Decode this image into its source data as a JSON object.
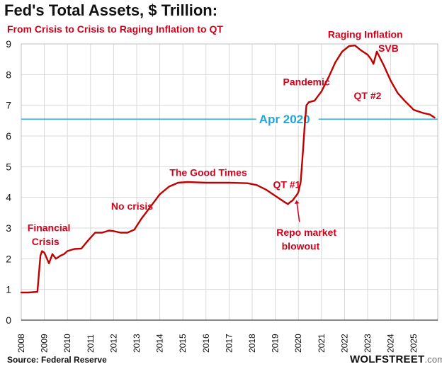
{
  "title": "Fed's Total Assets, $ Trillion:",
  "subtitle": "From Crisis to Crisis to Raging Inflation to QT",
  "source": "Source: Federal Reserve",
  "brand": "WOLFSTREET",
  "brand_suffix": ".com",
  "colors": {
    "series": "#c00000",
    "annotation": "#d0021b",
    "reference_line": "#20a7db",
    "grid": "#d9d9d9"
  },
  "chart_data": {
    "type": "line",
    "title": "Fed's Total Assets, $ Trillion:",
    "subtitle": "From Crisis to Crisis to Raging Inflation to QT",
    "xlabel": "",
    "ylabel": "",
    "xlim": [
      2008.0,
      2025.9
    ],
    "ylim": [
      0,
      9
    ],
    "grid": "horizontal",
    "x_ticks": [
      "2008",
      "2009",
      "2010",
      "2011",
      "2012",
      "2013",
      "2014",
      "2015",
      "2016",
      "2017",
      "2018",
      "2019",
      "2020",
      "2021",
      "2022",
      "2023",
      "2024",
      "2025"
    ],
    "y_ticks": [
      "0",
      "1",
      "2",
      "3",
      "4",
      "5",
      "6",
      "7",
      "8",
      "9"
    ],
    "series": [
      {
        "x": [
          2008.0,
          2008.3,
          2008.7,
          2008.83,
          2008.9,
          2009.0,
          2009.2,
          2009.35,
          2009.5,
          2009.7,
          2009.85,
          2010.0,
          2010.3,
          2010.6,
          2010.9,
          2011.2,
          2011.5,
          2011.8,
          2012.0,
          2012.3,
          2012.6,
          2012.9,
          2013.2,
          2013.6,
          2014.0,
          2014.4,
          2014.8,
          2015.2,
          2016.0,
          2017.0,
          2017.8,
          2018.2,
          2018.6,
          2019.0,
          2019.4,
          2019.55,
          2019.65,
          2019.75,
          2019.85,
          2019.95,
          2020.0,
          2020.1,
          2020.2,
          2020.27,
          2020.35,
          2020.45,
          2020.7,
          2021.0,
          2021.3,
          2021.6,
          2021.9,
          2022.2,
          2022.45,
          2022.7,
          2023.0,
          2023.15,
          2023.25,
          2023.4,
          2023.7,
          2024.0,
          2024.3,
          2024.6,
          2025.0,
          2025.4,
          2025.7,
          2025.9
        ],
        "y": [
          0.9,
          0.9,
          0.92,
          2.1,
          2.25,
          2.2,
          1.85,
          2.15,
          2.0,
          2.1,
          2.15,
          2.25,
          2.32,
          2.33,
          2.6,
          2.85,
          2.85,
          2.92,
          2.9,
          2.85,
          2.85,
          2.95,
          3.3,
          3.7,
          4.1,
          4.35,
          4.48,
          4.5,
          4.48,
          4.48,
          4.46,
          4.4,
          4.25,
          4.05,
          3.85,
          3.78,
          3.85,
          3.9,
          4.0,
          4.1,
          4.17,
          4.5,
          5.5,
          6.3,
          7.0,
          7.1,
          7.15,
          7.45,
          7.9,
          8.4,
          8.75,
          8.93,
          8.95,
          8.8,
          8.65,
          8.5,
          8.35,
          8.75,
          8.3,
          7.8,
          7.4,
          7.15,
          6.85,
          6.75,
          6.7,
          6.6
        ]
      }
    ],
    "reference_line": {
      "y": 6.55,
      "label": "Apr 2020"
    },
    "annotations": [
      {
        "text": "Financial",
        "x": 2009.2,
        "y": 2.9
      },
      {
        "text": "Crisis",
        "x": 2009.05,
        "y": 2.45
      },
      {
        "text": "No crisis",
        "x": 2012.8,
        "y": 3.6
      },
      {
        "text": "The Good Times",
        "x": 2016.1,
        "y": 4.7
      },
      {
        "text": "QT #1",
        "x": 2019.5,
        "y": 4.3
      },
      {
        "text": "Repo market",
        "x": 2020.35,
        "y": 2.75
      },
      {
        "text": "blowout",
        "x": 2020.1,
        "y": 2.3
      },
      {
        "text": "Pandemic",
        "x": 2020.35,
        "y": 7.65
      },
      {
        "text": "Raging  Inflation",
        "x": 2022.9,
        "y": 9.2
      },
      {
        "text": "SVB",
        "x": 2023.9,
        "y": 8.75
      },
      {
        "text": "QT #2",
        "x": 2023.0,
        "y": 7.2
      }
    ]
  }
}
